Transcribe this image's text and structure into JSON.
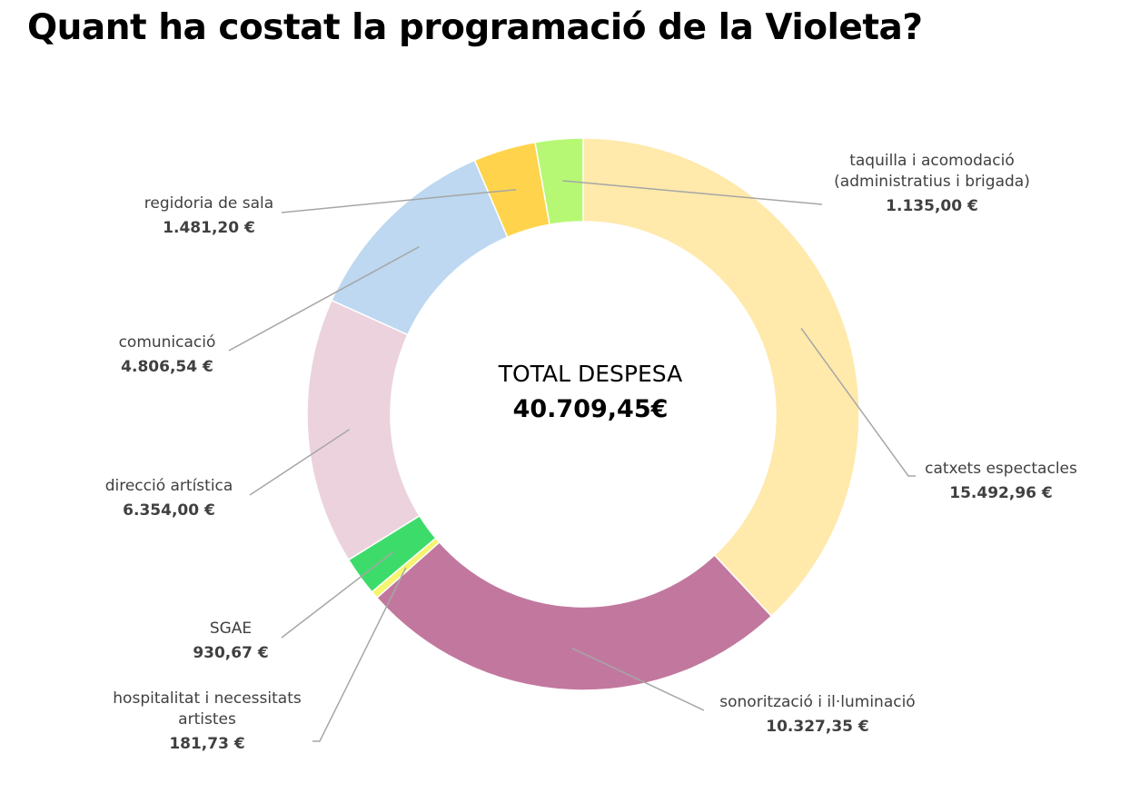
{
  "chart_data": {
    "type": "pie",
    "donut": true,
    "title": "Quant ha costat la programació de la Violeta?",
    "center_label": "TOTAL DESPESA",
    "center_value": "40.709,45€",
    "slices": [
      {
        "label": [
          "catxets espectacles"
        ],
        "value": 15492.96,
        "value_text": "15.492,96 €",
        "color": "#FFE9AB"
      },
      {
        "label": [
          "sonorització i il·luminació"
        ],
        "value": 10327.35,
        "value_text": "10.327,35 €",
        "color": "#C2789E"
      },
      {
        "label": [
          "hospitalitat i necessitats",
          "artistes"
        ],
        "value": 181.73,
        "value_text": "181,73 €",
        "color": "#F5F56E"
      },
      {
        "label": [
          "SGAE"
        ],
        "value": 930.67,
        "value_text": "930,67 €",
        "color": "#3DDC6A"
      },
      {
        "label": [
          "direcció artística"
        ],
        "value": 6354.0,
        "value_text": "6.354,00 €",
        "color": "#EBD2DD"
      },
      {
        "label": [
          "comunicació"
        ],
        "value": 4806.54,
        "value_text": "4.806,54 €",
        "color": "#BDD8F0"
      },
      {
        "label": [
          "regidoria de sala"
        ],
        "value": 1481.2,
        "value_text": "1.481,20 €",
        "color": "#FFD44C"
      },
      {
        "label": [
          "taquilla i acomodació",
          "(administratius i brigada)"
        ],
        "value": 1135.0,
        "value_text": "1.135,00 €",
        "color": "#B6F874"
      }
    ]
  }
}
